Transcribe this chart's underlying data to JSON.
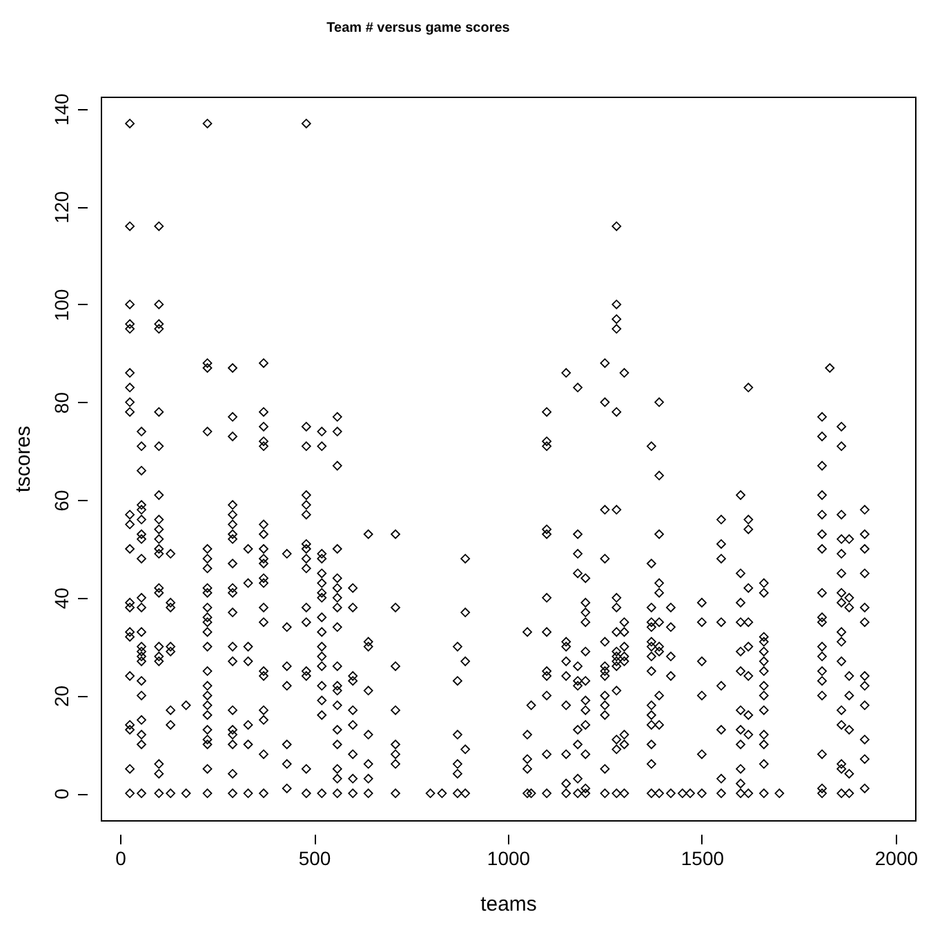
{
  "chart_data": {
    "type": "scatter",
    "title": "Team # versus game scores",
    "xlabel": "teams",
    "ylabel": "tscores",
    "xlim": [
      -50,
      2050
    ],
    "ylim": [
      -5.5,
      142.5
    ],
    "xticks": [
      0,
      500,
      {
        "value": 1000,
        "label": "1000"
      },
      {
        "value": 1500,
        "label": "1500"
      },
      {
        "value": 2000,
        "label": "2000"
      }
    ],
    "yticks": [
      0,
      20,
      40,
      60,
      80,
      100,
      120,
      140
    ],
    "grid": false,
    "marker": "diamond",
    "x": [
      25,
      25,
      25,
      25,
      25,
      25,
      25,
      25,
      25,
      25,
      25,
      25,
      25,
      25,
      25,
      25,
      25,
      25,
      25,
      25,
      25,
      55,
      55,
      55,
      55,
      55,
      55,
      55,
      55,
      55,
      55,
      55,
      55,
      55,
      55,
      55,
      55,
      55,
      55,
      55,
      55,
      55,
      55,
      100,
      100,
      100,
      100,
      100,
      100,
      100,
      100,
      100,
      100,
      100,
      100,
      100,
      100,
      100,
      100,
      100,
      100,
      100,
      100,
      130,
      130,
      130,
      130,
      130,
      130,
      130,
      130,
      170,
      170,
      225,
      225,
      225,
      225,
      225,
      225,
      225,
      225,
      225,
      225,
      225,
      225,
      225,
      225,
      225,
      225,
      225,
      225,
      225,
      225,
      225,
      225,
      225,
      225,
      290,
      290,
      290,
      290,
      290,
      290,
      290,
      290,
      290,
      290,
      290,
      290,
      290,
      290,
      290,
      290,
      290,
      290,
      290,
      290,
      330,
      330,
      330,
      330,
      330,
      330,
      330,
      370,
      370,
      370,
      370,
      370,
      370,
      370,
      370,
      370,
      370,
      370,
      370,
      370,
      370,
      370,
      370,
      370,
      370,
      370,
      370,
      430,
      430,
      430,
      430,
      430,
      430,
      430,
      480,
      480,
      480,
      480,
      480,
      480,
      480,
      480,
      480,
      480,
      480,
      480,
      480,
      480,
      480,
      480,
      520,
      520,
      520,
      520,
      520,
      520,
      520,
      520,
      520,
      520,
      520,
      520,
      520,
      520,
      520,
      520,
      520,
      560,
      560,
      560,
      560,
      560,
      560,
      560,
      560,
      560,
      560,
      560,
      560,
      560,
      560,
      560,
      560,
      560,
      560,
      600,
      600,
      600,
      600,
      600,
      600,
      600,
      600,
      600,
      640,
      640,
      640,
      640,
      640,
      640,
      640,
      640,
      710,
      710,
      710,
      710,
      710,
      710,
      710,
      710,
      800,
      830,
      870,
      870,
      870,
      870,
      870,
      870,
      890,
      890,
      890,
      890,
      890,
      1050,
      1050,
      1050,
      1050,
      1050,
      1060,
      1060,
      1100,
      1100,
      1100,
      1100,
      1100,
      1100,
      1100,
      1100,
      1100,
      1100,
      1100,
      1100,
      1150,
      1150,
      1150,
      1150,
      1150,
      1150,
      1150,
      1150,
      1150,
      1180,
      1180,
      1180,
      1180,
      1180,
      1180,
      1180,
      1180,
      1180,
      1180,
      1180,
      1200,
      1200,
      1200,
      1200,
      1200,
      1200,
      1200,
      1200,
      1200,
      1200,
      1200,
      1200,
      1250,
      1250,
      1250,
      1250,
      1250,
      1250,
      1250,
      1250,
      1250,
      1250,
      1250,
      1250,
      1250,
      1280,
      1280,
      1280,
      1280,
      1280,
      1280,
      1280,
      1280,
      1280,
      1280,
      1280,
      1280,
      1280,
      1280,
      1280,
      1280,
      1280,
      1300,
      1300,
      1300,
      1300,
      1300,
      1300,
      1300,
      1300,
      1300,
      1370,
      1370,
      1370,
      1370,
      1370,
      1370,
      1370,
      1370,
      1370,
      1370,
      1370,
      1370,
      1370,
      1370,
      1370,
      1390,
      1390,
      1390,
      1390,
      1390,
      1390,
      1390,
      1390,
      1390,
      1390,
      1390,
      1420,
      1420,
      1420,
      1420,
      1420,
      1450,
      1470,
      1500,
      1500,
      1500,
      1500,
      1500,
      1500,
      1550,
      1550,
      1550,
      1550,
      1550,
      1550,
      1550,
      1550,
      1600,
      1600,
      1600,
      1600,
      1600,
      1600,
      1600,
      1600,
      1600,
      1600,
      1600,
      1600,
      1620,
      1620,
      1620,
      1620,
      1620,
      1620,
      1620,
      1620,
      1620,
      1620,
      1660,
      1660,
      1660,
      1660,
      1660,
      1660,
      1660,
      1660,
      1660,
      1660,
      1660,
      1660,
      1660,
      1660,
      1700,
      1810,
      1810,
      1810,
      1810,
      1810,
      1810,
      1810,
      1810,
      1810,
      1810,
      1810,
      1810,
      1810,
      1810,
      1810,
      1810,
      1810,
      1810,
      1830,
      1860,
      1860,
      1860,
      1860,
      1860,
      1860,
      1860,
      1860,
      1860,
      1860,
      1860,
      1860,
      1860,
      1860,
      1860,
      1860,
      1880,
      1880,
      1880,
      1880,
      1880,
      1880,
      1880,
      1880,
      1920,
      1920,
      1920,
      1920,
      1920,
      1920,
      1920,
      1920,
      1920,
      1920,
      1920,
      1920
    ],
    "series": [
      {
        "color": "#000000",
        "values": [
          137,
          116,
          100,
          96,
          95,
          86,
          83,
          80,
          78,
          57,
          55,
          50,
          39,
          38,
          33,
          32,
          24,
          14,
          13,
          5,
          0,
          74,
          71,
          66,
          59,
          58,
          56,
          53,
          52,
          48,
          40,
          38,
          33,
          30,
          29,
          28,
          27,
          23,
          20,
          15,
          12,
          10,
          0,
          116,
          100,
          96,
          95,
          78,
          71,
          61,
          56,
          54,
          52,
          50,
          49,
          42,
          41,
          30,
          28,
          27,
          6,
          4,
          0,
          49,
          39,
          38,
          30,
          29,
          17,
          14,
          0,
          18,
          0,
          137,
          88,
          87,
          74,
          50,
          48,
          46,
          42,
          41,
          38,
          36,
          35,
          33,
          30,
          25,
          22,
          20,
          18,
          16,
          13,
          11,
          10,
          5,
          0,
          87,
          77,
          73,
          59,
          57,
          55,
          53,
          52,
          47,
          42,
          41,
          37,
          30,
          27,
          17,
          13,
          12,
          10,
          4,
          0,
          50,
          43,
          30,
          27,
          14,
          10,
          0,
          88,
          78,
          75,
          72,
          71,
          55,
          53,
          50,
          48,
          47,
          44,
          43,
          38,
          35,
          25,
          24,
          17,
          15,
          8,
          0,
          49,
          34,
          26,
          22,
          10,
          6,
          1,
          137,
          75,
          71,
          61,
          59,
          57,
          51,
          50,
          48,
          46,
          38,
          35,
          25,
          24,
          5,
          0,
          74,
          71,
          49,
          48,
          45,
          43,
          41,
          40,
          36,
          33,
          30,
          28,
          26,
          22,
          19,
          16,
          0,
          77,
          74,
          67,
          50,
          44,
          42,
          40,
          38,
          34,
          26,
          22,
          21,
          18,
          13,
          10,
          5,
          3,
          0,
          42,
          38,
          24,
          23,
          17,
          14,
          8,
          3,
          0,
          53,
          31,
          30,
          21,
          12,
          6,
          3,
          0,
          53,
          38,
          26,
          17,
          10,
          8,
          6,
          0,
          0,
          0,
          30,
          23,
          12,
          6,
          4,
          0,
          48,
          37,
          27,
          9,
          0,
          33,
          12,
          7,
          5,
          0,
          18,
          0,
          78,
          72,
          71,
          54,
          53,
          40,
          33,
          25,
          24,
          20,
          8,
          0,
          86,
          31,
          30,
          27,
          24,
          18,
          8,
          2,
          0,
          83,
          53,
          49,
          45,
          26,
          23,
          22,
          13,
          10,
          3,
          0,
          44,
          39,
          37,
          35,
          29,
          23,
          19,
          17,
          14,
          8,
          1,
          0,
          88,
          80,
          58,
          48,
          31,
          26,
          25,
          24,
          20,
          18,
          16,
          5,
          0,
          116,
          100,
          97,
          95,
          78,
          58,
          40,
          38,
          33,
          29,
          28,
          27,
          26,
          21,
          11,
          9,
          0,
          86,
          35,
          33,
          30,
          28,
          27,
          12,
          10,
          0,
          71,
          47,
          38,
          35,
          34,
          31,
          30,
          28,
          25,
          18,
          16,
          14,
          10,
          6,
          0,
          80,
          65,
          53,
          43,
          41,
          35,
          30,
          29,
          20,
          14,
          0,
          38,
          34,
          28,
          24,
          0,
          0,
          0,
          39,
          35,
          27,
          20,
          8,
          0,
          56,
          51,
          48,
          35,
          22,
          13,
          3,
          0,
          61,
          45,
          39,
          35,
          29,
          25,
          17,
          13,
          10,
          5,
          2,
          0,
          83,
          56,
          54,
          42,
          35,
          30,
          24,
          16,
          12,
          0,
          43,
          41,
          32,
          31,
          29,
          27,
          25,
          22,
          20,
          17,
          12,
          10,
          6,
          0,
          0,
          77,
          73,
          67,
          61,
          57,
          53,
          50,
          41,
          36,
          35,
          30,
          28,
          25,
          23,
          20,
          8,
          1,
          0,
          87,
          75,
          71,
          57,
          52,
          49,
          45,
          41,
          39,
          33,
          31,
          27,
          17,
          14,
          6,
          5,
          0,
          52,
          40,
          38,
          24,
          20,
          13,
          4,
          0,
          58,
          53,
          50,
          45,
          38,
          35,
          24,
          22,
          18,
          11,
          7,
          1
        ]
      }
    ]
  }
}
